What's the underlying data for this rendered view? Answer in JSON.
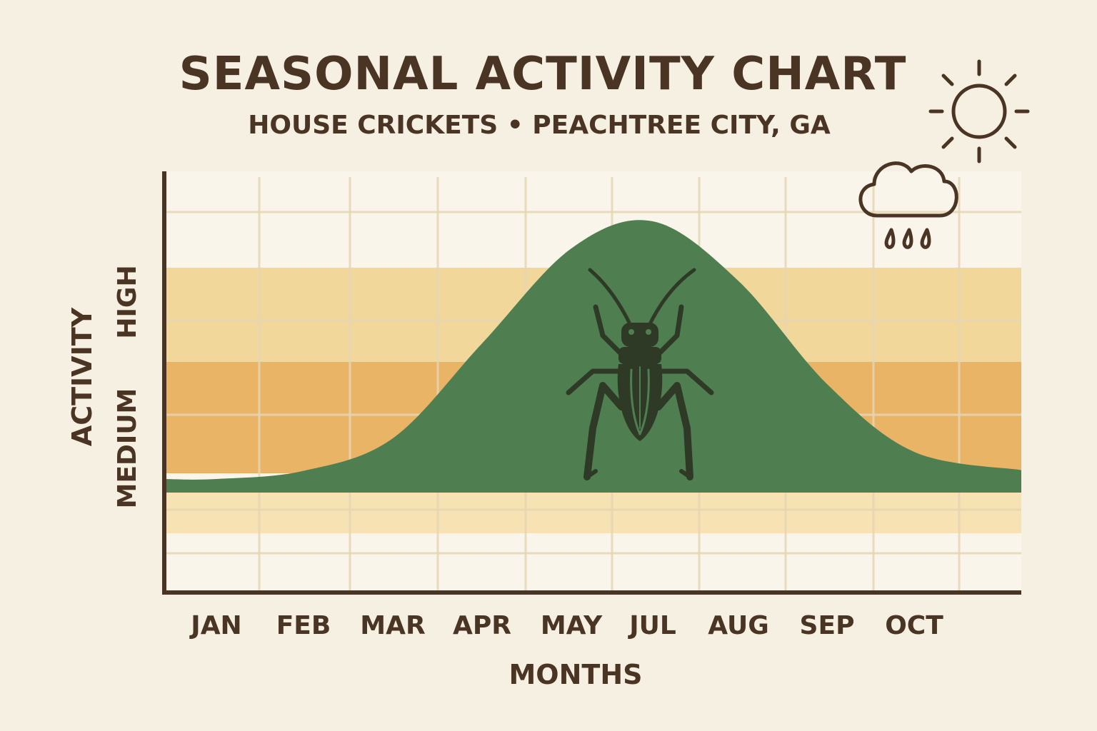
{
  "header": {
    "title": "SEASONAL ACTIVITY CHART",
    "subtitle": "HOUSE CRICKETS • PEACHTREE CITY, GA"
  },
  "icons": {
    "sun": "sun-icon",
    "rain": "rain-cloud-icon",
    "insect": "cricket-icon"
  },
  "colors": {
    "background": "#f6f0e2",
    "curve": "#4f7f50",
    "band_light": "#f2d79a",
    "band_medium": "#e9b466",
    "band_pale": "#f6e2b2",
    "axis": "#4a3423",
    "icon_dark": "#2e3a26"
  },
  "chart_data": {
    "type": "area",
    "x": [
      "JAN",
      "FEB",
      "MAR",
      "APR",
      "MAY",
      "JUL",
      "AUG",
      "SEP",
      "OCT"
    ],
    "series": [
      {
        "values": [
          0.05,
          0.08,
          0.2,
          0.55,
          0.9,
          1.0,
          0.78,
          0.4,
          0.15
        ]
      }
    ],
    "xlabel": "MONTHS",
    "ylabel": "ACTIVITY",
    "y_tick_labels": [
      "MEDIUM",
      "HIGH"
    ],
    "bands": [
      {
        "level": "high",
        "range": [
          0.66,
          1.0
        ]
      },
      {
        "level": "medium",
        "range": [
          0.33,
          0.66
        ]
      },
      {
        "level": "low",
        "range": [
          0.0,
          0.33
        ]
      }
    ],
    "ylim": [
      0,
      1
    ],
    "grid": true,
    "legend": "none"
  }
}
